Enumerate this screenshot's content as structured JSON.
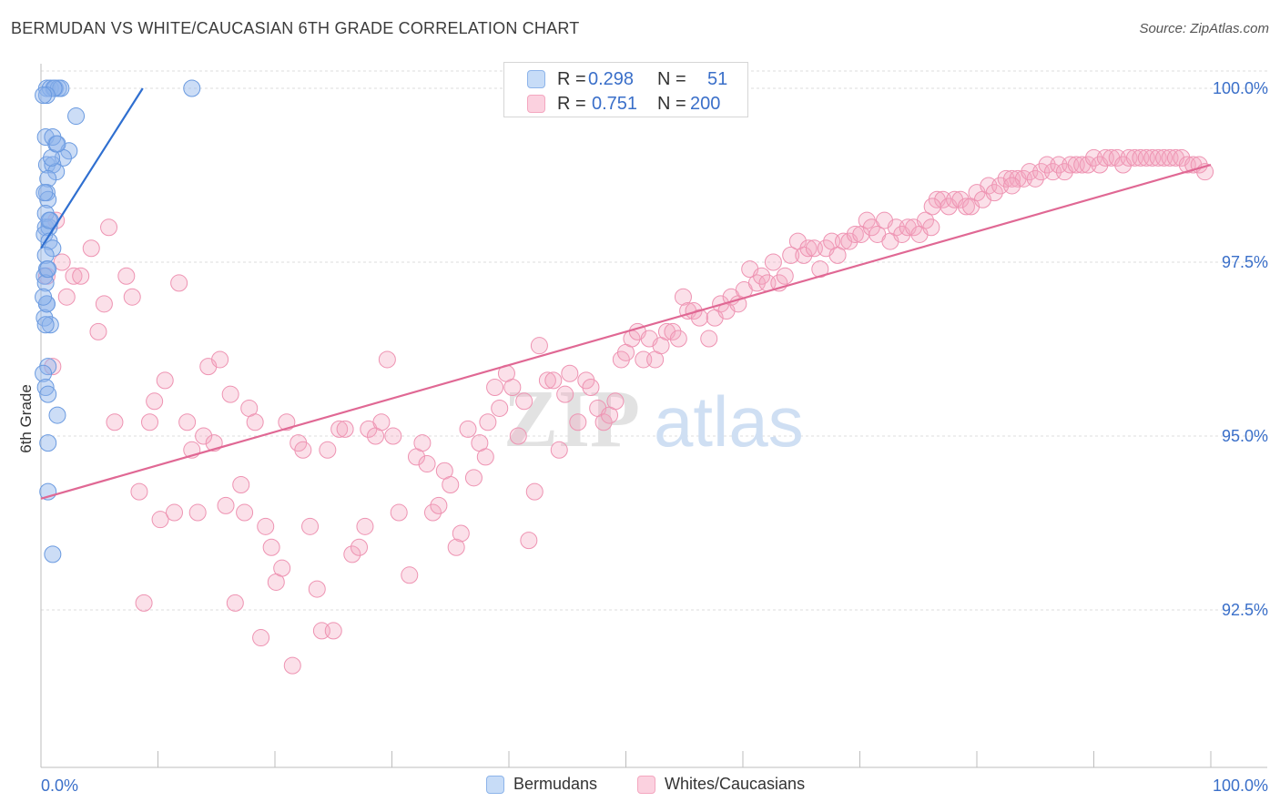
{
  "header": {
    "title": "BERMUDAN VS WHITE/CAUCASIAN 6TH GRADE CORRELATION CHART",
    "source": "Source: ZipAtlas.com"
  },
  "stats": {
    "rows": [
      {
        "r_label": "R =",
        "r_value": "0.298",
        "n_label": "N =",
        "n_value": "51",
        "color": "#8db4ea"
      },
      {
        "r_label": "R =",
        "r_value": "0.751",
        "n_label": "N =",
        "n_value": "200",
        "color": "#f4a7c0"
      }
    ]
  },
  "legend": {
    "items": [
      {
        "label": "Bermudans",
        "color": "#8db4ea"
      },
      {
        "label": "Whites/Caucasians",
        "color": "#f4a7c0"
      }
    ]
  },
  "watermark": {
    "zip": "ZIP",
    "atlas": "atlas"
  },
  "chart_data": {
    "type": "scatter",
    "title": "BERMUDAN VS WHITE/CAUCASIAN 6TH GRADE CORRELATION CHART",
    "xlabel": "",
    "ylabel": "6th Grade",
    "xlim": [
      0,
      100
    ],
    "ylim": [
      90.0,
      100.3
    ],
    "x_tick_labels": [
      "0.0%",
      "100.0%"
    ],
    "y_ticks": [
      92.5,
      95.0,
      97.5,
      100.0
    ],
    "y_tick_labels": [
      "92.5%",
      "95.0%",
      "97.5%",
      "100.0%"
    ],
    "grid": true,
    "legend_position": "bottom-center",
    "series": [
      {
        "name": "Bermudans",
        "color": "#8db4ea",
        "line_color": "#2f6fd0",
        "trend": {
          "x": [
            0.0,
            8.7
          ],
          "y": [
            97.7,
            100.0
          ]
        },
        "points": [
          [
            0.5,
            100.0
          ],
          [
            0.8,
            100.0
          ],
          [
            1.2,
            100.0
          ],
          [
            1.5,
            100.0
          ],
          [
            1.7,
            100.0
          ],
          [
            1.1,
            100.0
          ],
          [
            12.9,
            100.0
          ],
          [
            0.5,
            99.9
          ],
          [
            3.0,
            99.6
          ],
          [
            0.4,
            99.3
          ],
          [
            1.3,
            99.2
          ],
          [
            1.0,
            99.3
          ],
          [
            2.4,
            99.1
          ],
          [
            1.9,
            99.0
          ],
          [
            0.5,
            98.9
          ],
          [
            1.0,
            98.9
          ],
          [
            1.3,
            98.8
          ],
          [
            0.6,
            98.7
          ],
          [
            0.5,
            98.5
          ],
          [
            0.6,
            98.4
          ],
          [
            0.4,
            98.2
          ],
          [
            0.4,
            98.0
          ],
          [
            0.7,
            98.0
          ],
          [
            0.8,
            98.1
          ],
          [
            0.3,
            97.9
          ],
          [
            0.7,
            97.8
          ],
          [
            1.0,
            97.7
          ],
          [
            0.4,
            97.6
          ],
          [
            0.5,
            97.4
          ],
          [
            0.3,
            97.3
          ],
          [
            0.4,
            97.2
          ],
          [
            0.5,
            96.9
          ],
          [
            0.3,
            96.7
          ],
          [
            0.5,
            96.9
          ],
          [
            0.8,
            96.6
          ],
          [
            0.6,
            96.0
          ],
          [
            0.2,
            95.9
          ],
          [
            0.4,
            95.7
          ],
          [
            0.6,
            95.6
          ],
          [
            1.4,
            95.3
          ],
          [
            0.6,
            94.9
          ],
          [
            0.6,
            94.2
          ],
          [
            1.0,
            93.3
          ],
          [
            0.3,
            98.5
          ],
          [
            0.7,
            98.1
          ],
          [
            0.2,
            97.0
          ],
          [
            0.4,
            96.6
          ],
          [
            0.9,
            99.0
          ],
          [
            0.2,
            99.9
          ],
          [
            1.4,
            99.2
          ],
          [
            0.6,
            97.4
          ]
        ]
      },
      {
        "name": "Whites/Caucasians",
        "color": "#f4a7c0",
        "line_color": "#e06894",
        "trend": {
          "x": [
            0.0,
            100.0
          ],
          "y": [
            94.1,
            98.9
          ]
        },
        "points": [
          [
            0.5,
            97.3
          ],
          [
            1.0,
            96.0
          ],
          [
            1.3,
            98.1
          ],
          [
            1.8,
            97.5
          ],
          [
            2.2,
            97.0
          ],
          [
            2.8,
            97.3
          ],
          [
            3.4,
            97.3
          ],
          [
            4.3,
            97.7
          ],
          [
            5.4,
            96.9
          ],
          [
            5.8,
            98.0
          ],
          [
            6.3,
            95.2
          ],
          [
            4.9,
            96.5
          ],
          [
            7.3,
            97.3
          ],
          [
            7.8,
            97.0
          ],
          [
            8.4,
            94.2
          ],
          [
            8.8,
            92.6
          ],
          [
            9.3,
            95.2
          ],
          [
            9.7,
            95.5
          ],
          [
            10.2,
            93.8
          ],
          [
            10.6,
            95.8
          ],
          [
            11.4,
            93.9
          ],
          [
            11.8,
            97.2
          ],
          [
            12.5,
            95.2
          ],
          [
            12.9,
            94.8
          ],
          [
            13.4,
            93.9
          ],
          [
            13.9,
            95.0
          ],
          [
            14.3,
            96.0
          ],
          [
            14.8,
            94.9
          ],
          [
            15.3,
            96.1
          ],
          [
            15.8,
            94.0
          ],
          [
            16.2,
            95.6
          ],
          [
            16.6,
            92.6
          ],
          [
            17.1,
            94.3
          ],
          [
            17.4,
            93.9
          ],
          [
            17.8,
            95.4
          ],
          [
            18.3,
            95.2
          ],
          [
            18.8,
            92.1
          ],
          [
            19.2,
            93.7
          ],
          [
            19.7,
            93.4
          ],
          [
            20.1,
            92.9
          ],
          [
            20.6,
            93.1
          ],
          [
            21.0,
            95.2
          ],
          [
            21.5,
            91.7
          ],
          [
            22.0,
            94.9
          ],
          [
            22.4,
            94.8
          ],
          [
            23.0,
            93.7
          ],
          [
            23.6,
            92.8
          ],
          [
            24.0,
            92.2
          ],
          [
            24.5,
            94.8
          ],
          [
            25.0,
            92.2
          ],
          [
            25.5,
            95.1
          ],
          [
            26.0,
            95.1
          ],
          [
            26.6,
            93.3
          ],
          [
            27.2,
            93.4
          ],
          [
            27.7,
            93.7
          ],
          [
            28.0,
            95.1
          ],
          [
            28.6,
            95.0
          ],
          [
            29.1,
            95.2
          ],
          [
            30.1,
            95.0
          ],
          [
            29.6,
            96.1
          ],
          [
            30.6,
            93.9
          ],
          [
            31.5,
            93.0
          ],
          [
            32.1,
            94.7
          ],
          [
            32.6,
            94.9
          ],
          [
            33.0,
            94.6
          ],
          [
            33.5,
            93.9
          ],
          [
            34.0,
            94.0
          ],
          [
            34.5,
            94.5
          ],
          [
            35.0,
            94.3
          ],
          [
            35.5,
            93.4
          ],
          [
            35.9,
            93.6
          ],
          [
            36.5,
            95.1
          ],
          [
            37.0,
            94.4
          ],
          [
            37.5,
            94.9
          ],
          [
            38.2,
            95.2
          ],
          [
            38.0,
            94.7
          ],
          [
            38.8,
            95.7
          ],
          [
            39.2,
            95.4
          ],
          [
            39.8,
            95.9
          ],
          [
            40.3,
            95.7
          ],
          [
            40.8,
            95.0
          ],
          [
            41.3,
            95.5
          ],
          [
            41.7,
            93.5
          ],
          [
            42.2,
            94.2
          ],
          [
            42.6,
            96.3
          ],
          [
            43.3,
            95.8
          ],
          [
            43.8,
            95.8
          ],
          [
            44.3,
            94.8
          ],
          [
            44.8,
            95.6
          ],
          [
            45.2,
            95.9
          ],
          [
            45.9,
            95.2
          ],
          [
            46.6,
            95.8
          ],
          [
            47.0,
            95.7
          ],
          [
            47.6,
            95.4
          ],
          [
            48.1,
            95.2
          ],
          [
            48.6,
            95.3
          ],
          [
            49.1,
            95.5
          ],
          [
            49.6,
            96.1
          ],
          [
            50.0,
            96.2
          ],
          [
            50.5,
            96.4
          ],
          [
            51.0,
            96.5
          ],
          [
            51.5,
            96.1
          ],
          [
            52.0,
            96.4
          ],
          [
            52.5,
            96.1
          ],
          [
            53.0,
            96.3
          ],
          [
            53.5,
            96.5
          ],
          [
            54.0,
            96.5
          ],
          [
            54.5,
            96.4
          ],
          [
            54.9,
            97.0
          ],
          [
            55.3,
            96.8
          ],
          [
            55.8,
            96.8
          ],
          [
            56.3,
            96.7
          ],
          [
            57.1,
            96.4
          ],
          [
            57.6,
            96.7
          ],
          [
            58.1,
            96.9
          ],
          [
            58.6,
            96.8
          ],
          [
            59.0,
            97.0
          ],
          [
            59.6,
            96.9
          ],
          [
            60.1,
            97.1
          ],
          [
            60.6,
            97.4
          ],
          [
            61.2,
            97.2
          ],
          [
            61.6,
            97.3
          ],
          [
            62.1,
            97.2
          ],
          [
            62.6,
            97.5
          ],
          [
            63.1,
            97.2
          ],
          [
            63.6,
            97.3
          ],
          [
            64.1,
            97.6
          ],
          [
            64.7,
            97.8
          ],
          [
            65.2,
            97.6
          ],
          [
            65.6,
            97.7
          ],
          [
            66.1,
            97.7
          ],
          [
            66.6,
            97.4
          ],
          [
            67.1,
            97.7
          ],
          [
            67.6,
            97.8
          ],
          [
            68.1,
            97.6
          ],
          [
            68.6,
            97.8
          ],
          [
            69.1,
            97.8
          ],
          [
            69.6,
            97.9
          ],
          [
            70.1,
            97.9
          ],
          [
            70.6,
            98.1
          ],
          [
            71.0,
            98.0
          ],
          [
            71.5,
            97.9
          ],
          [
            72.1,
            98.1
          ],
          [
            72.6,
            97.8
          ],
          [
            73.1,
            98.0
          ],
          [
            73.6,
            97.9
          ],
          [
            74.1,
            98.0
          ],
          [
            74.6,
            98.0
          ],
          [
            75.1,
            97.9
          ],
          [
            75.6,
            98.1
          ],
          [
            76.1,
            98.0
          ],
          [
            76.6,
            98.4
          ],
          [
            77.1,
            98.4
          ],
          [
            77.6,
            98.3
          ],
          [
            78.1,
            98.4
          ],
          [
            78.6,
            98.4
          ],
          [
            79.1,
            98.3
          ],
          [
            79.5,
            98.3
          ],
          [
            80.0,
            98.5
          ],
          [
            80.5,
            98.4
          ],
          [
            81.0,
            98.6
          ],
          [
            81.5,
            98.5
          ],
          [
            82.0,
            98.6
          ],
          [
            82.5,
            98.7
          ],
          [
            83.0,
            98.7
          ],
          [
            83.5,
            98.7
          ],
          [
            84.0,
            98.7
          ],
          [
            84.5,
            98.8
          ],
          [
            85.0,
            98.7
          ],
          [
            85.5,
            98.8
          ],
          [
            86.0,
            98.9
          ],
          [
            86.5,
            98.8
          ],
          [
            87.0,
            98.9
          ],
          [
            87.5,
            98.8
          ],
          [
            88.0,
            98.9
          ],
          [
            88.5,
            98.9
          ],
          [
            89.0,
            98.9
          ],
          [
            89.5,
            98.9
          ],
          [
            90.0,
            99.0
          ],
          [
            90.5,
            98.9
          ],
          [
            91.0,
            99.0
          ],
          [
            91.5,
            99.0
          ],
          [
            92.0,
            99.0
          ],
          [
            92.5,
            98.9
          ],
          [
            93.0,
            99.0
          ],
          [
            93.5,
            99.0
          ],
          [
            94.0,
            99.0
          ],
          [
            94.5,
            99.0
          ],
          [
            95.0,
            99.0
          ],
          [
            95.5,
            99.0
          ],
          [
            96.0,
            99.0
          ],
          [
            96.5,
            99.0
          ],
          [
            97.0,
            99.0
          ],
          [
            97.5,
            99.0
          ],
          [
            98.0,
            98.9
          ],
          [
            98.5,
            98.9
          ],
          [
            99.0,
            98.9
          ],
          [
            99.5,
            98.8
          ],
          [
            76.2,
            98.3
          ],
          [
            83.0,
            98.6
          ]
        ]
      }
    ]
  }
}
